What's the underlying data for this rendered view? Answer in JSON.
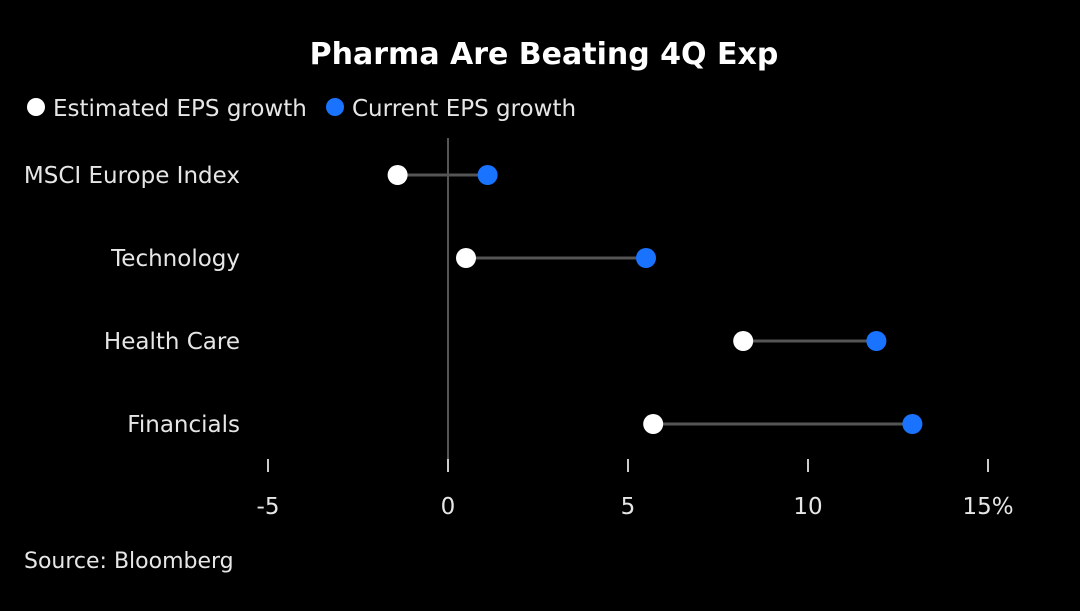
{
  "chart_data": {
    "type": "dumbbell",
    "title": "Pharma Are Beating 4Q Exp",
    "categories": [
      "MSCI Europe Index",
      "Technology",
      "Health Care",
      "Financials"
    ],
    "series": [
      {
        "name": "Estimated EPS growth",
        "values": [
          -1.4,
          0.5,
          8.2,
          5.7
        ]
      },
      {
        "name": "Current EPS growth",
        "values": [
          1.1,
          5.5,
          11.9,
          12.9
        ]
      }
    ],
    "x_ticks": [
      "-5",
      "0",
      "5",
      "10",
      "15%"
    ],
    "xlim": [
      -5,
      15
    ],
    "grid": false,
    "legend_position": "top-left",
    "source": "Source: Bloomberg"
  },
  "colors": {
    "background": "#000000",
    "estimated": "#ffffff",
    "current": "#1a73ff",
    "connector": "#555555",
    "zero_line": "#555555",
    "text": "#e6e6e6"
  }
}
